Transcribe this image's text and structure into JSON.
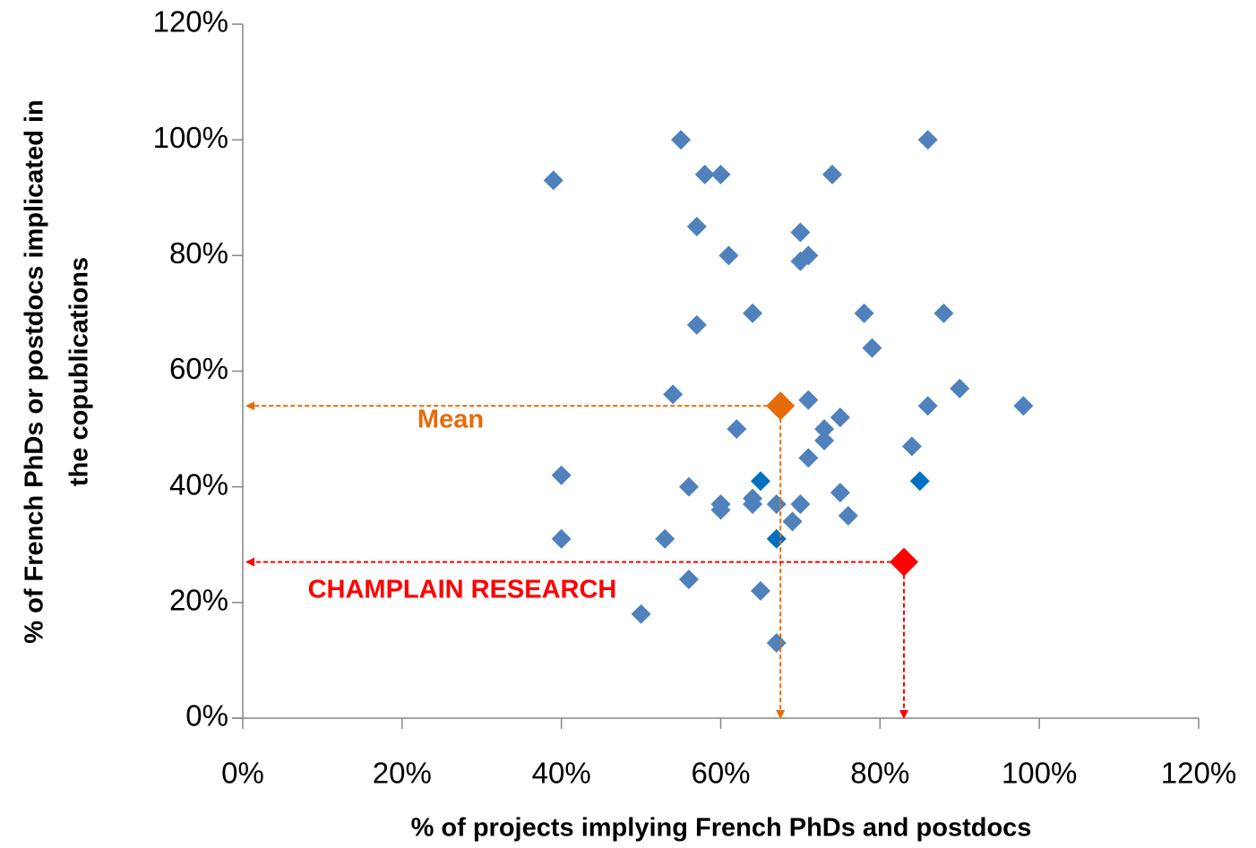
{
  "chart_data": {
    "type": "scatter",
    "xlabel": "% of projects implying French PhDs and postdocs",
    "ylabel": [
      "% of French PhDs or postdocs implicated in",
      "the copublications"
    ],
    "xlim": [
      0,
      120
    ],
    "ylim": [
      0,
      120
    ],
    "xticks": [
      {
        "value": 0,
        "label": "0%"
      },
      {
        "value": 20,
        "label": "20%"
      },
      {
        "value": 40,
        "label": "40%"
      },
      {
        "value": 60,
        "label": "60%"
      },
      {
        "value": 80,
        "label": "80%"
      },
      {
        "value": 100,
        "label": "100%"
      },
      {
        "value": 120,
        "label": "120%"
      }
    ],
    "yticks": [
      {
        "value": 0,
        "label": "0%"
      },
      {
        "value": 20,
        "label": "20%"
      },
      {
        "value": 40,
        "label": "40%"
      },
      {
        "value": 60,
        "label": "60%"
      },
      {
        "value": 80,
        "label": "80%"
      },
      {
        "value": 100,
        "label": "100%"
      },
      {
        "value": 120,
        "label": "120%"
      }
    ],
    "series": [
      {
        "color": "#4f81bd",
        "x": [
          39,
          55,
          58,
          60,
          57,
          61,
          57,
          64,
          54,
          62,
          40,
          40,
          56,
          53,
          60,
          60,
          64,
          64,
          67,
          56,
          65,
          50,
          67,
          70,
          70,
          71,
          74,
          71,
          73,
          73,
          71,
          75,
          75,
          76,
          69,
          70,
          78,
          79,
          86,
          88,
          90,
          86,
          98,
          84
        ],
        "values": [
          93,
          100,
          94,
          94,
          85,
          80,
          68,
          70,
          56,
          50,
          42,
          31,
          40,
          31,
          37,
          36,
          38,
          37,
          37,
          24,
          22,
          18,
          13,
          84,
          79,
          80,
          94,
          55,
          50,
          48,
          45,
          52,
          39,
          35,
          34,
          37,
          70,
          64,
          100,
          70,
          57,
          54,
          54,
          47
        ]
      },
      {
        "color": "#0070c0",
        "x": [
          65,
          67,
          85
        ],
        "values": [
          41,
          31,
          41
        ]
      },
      {
        "name": "Mean",
        "color": "#e46c0a",
        "x": [
          67.5
        ],
        "values": [
          54
        ],
        "highlight": true
      },
      {
        "name": "CHAMPLAIN RESEARCH",
        "color": "#ff0000",
        "x": [
          83
        ],
        "values": [
          27
        ],
        "highlight": true
      }
    ]
  }
}
